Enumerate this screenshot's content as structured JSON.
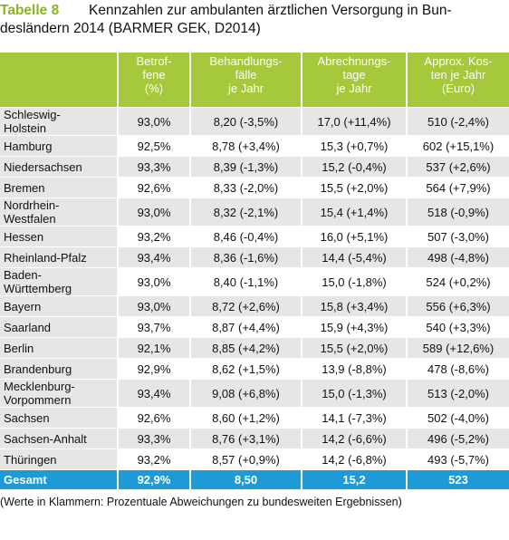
{
  "header": {
    "label": "Tabelle 8",
    "title_lines": [
      "Kennzahlen zur ambulanten ärztlichen Versorgung in Bun-",
      "desländern 2014 (BARMER GEK, D2014)"
    ]
  },
  "table": {
    "columns": [
      [
        "Betrof-",
        "fene",
        "(%)"
      ],
      [
        "Behandlungs-",
        "fälle",
        "je Jahr"
      ],
      [
        "Abrechnungs-",
        "tage",
        "je Jahr"
      ],
      [
        "Approx. Kos-",
        "ten je Jahr",
        "(Euro)"
      ]
    ],
    "rows": [
      [
        [
          "Schleswig-",
          "Holstein"
        ],
        "93,0%",
        "8,20 (-3,5%)",
        "17,0 (+11,4%)",
        "510 (-2,4%)"
      ],
      [
        [
          "Hamburg"
        ],
        "92,5%",
        "8,78 (+3,4%)",
        "15,3 (+0,7%)",
        "602 (+15,1%)"
      ],
      [
        [
          "Niedersachsen"
        ],
        "93,3%",
        "8,39 (-1,3%)",
        "15,2 (-0,4%)",
        "537 (+2,6%)"
      ],
      [
        [
          "Bremen"
        ],
        "92,6%",
        "8,33 (-2,0%)",
        "15,5 (+2,0%)",
        "564 (+7,9%)"
      ],
      [
        [
          "Nordrhein-",
          "Westfalen"
        ],
        "93,0%",
        "8,32 (-2,1%)",
        "15,4 (+1,4%)",
        "518 (-0,9%)"
      ],
      [
        [
          "Hessen"
        ],
        "93,2%",
        "8,46 (-0,4%)",
        "16,0 (+5,1%)",
        "507 (-3,0%)"
      ],
      [
        [
          "Rheinland-Pfalz"
        ],
        "93,4%",
        "8,36 (-1,6%)",
        "14,4 (-5,4%)",
        "498 (-4,8%)"
      ],
      [
        [
          "Baden-",
          "Württemberg"
        ],
        "93,0%",
        "8,40 (-1,1%)",
        "15,0 (-1,8%)",
        "524 (+0,2%)"
      ],
      [
        [
          "Bayern"
        ],
        "93,0%",
        "8,72 (+2,6%)",
        "15,8 (+3,4%)",
        "556 (+6,3%)"
      ],
      [
        [
          "Saarland"
        ],
        "93,7%",
        "8,87 (+4,4%)",
        "15,9 (+4,3%)",
        "540 (+3,3%)"
      ],
      [
        [
          "Berlin"
        ],
        "92,1%",
        "8,85 (+4,2%)",
        "15,5 (+2,0%)",
        "589 (+12,6%)"
      ],
      [
        [
          "Brandenburg"
        ],
        "92,9%",
        "8,62 (+1,5%)",
        "13,9 (-8,8%)",
        "478 (-8,6%)"
      ],
      [
        [
          "Mecklenburg-",
          "Vorpommern"
        ],
        "93,4%",
        "9,08 (+6,8%)",
        "15,0 (-1,3%)",
        "513 (-2,0%)"
      ],
      [
        [
          "Sachsen"
        ],
        "92,6%",
        "8,60 (+1,2%)",
        "14,1 (-7,3%)",
        "502 (-4,0%)"
      ],
      [
        [
          "Sachsen-Anhalt"
        ],
        "93,3%",
        "8,76 (+3,1%)",
        "14,2 (-6,6%)",
        "496 (-5,2%)"
      ],
      [
        [
          "Thüringen"
        ],
        "93,2%",
        "8,57 (+0,9%)",
        "14,2 (-6,8%)",
        "493 (-5,7%)"
      ]
    ],
    "total": [
      "Gesamt",
      "92,9%",
      "8,50",
      "15,2",
      "523"
    ]
  },
  "footnote": "(Werte in Klammern: Prozentuale Abweichungen zu bundesweiten Ergebnissen)"
}
